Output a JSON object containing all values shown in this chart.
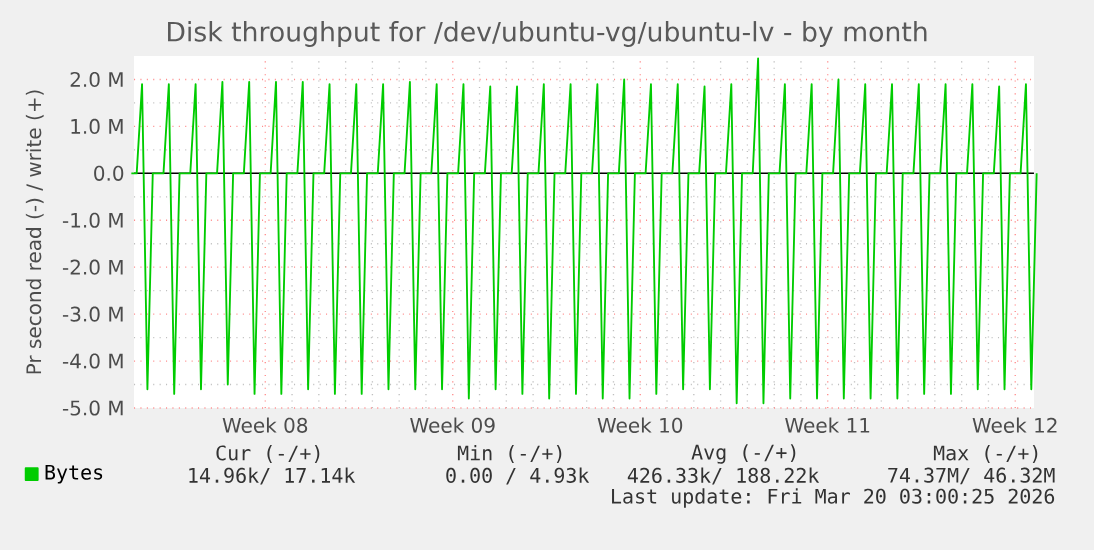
{
  "chart_data": {
    "type": "line",
    "title": "Disk throughput for /dev/ubuntu-vg/ubuntu-lv - by month",
    "ylabel": "Pr second read (-) / write (+)",
    "categories": [
      null,
      null,
      null,
      null,
      null,
      null,
      null,
      null,
      null,
      null,
      null,
      null,
      null,
      null,
      null,
      null,
      null,
      null,
      null,
      null,
      null,
      null,
      null,
      null,
      null,
      "Week 08",
      null,
      null,
      null,
      null,
      null,
      null,
      null,
      null,
      null,
      null,
      null,
      null,
      null,
      null,
      null,
      null,
      null,
      null,
      null,
      null,
      null,
      null,
      null,
      null,
      null,
      null,
      null,
      null,
      null,
      null,
      null,
      null,
      null,
      null,
      "Week 09",
      null,
      null,
      null,
      null,
      null,
      null,
      null,
      null,
      null,
      null,
      null,
      null,
      null,
      null,
      null,
      null,
      null,
      null,
      null,
      null,
      null,
      null,
      null,
      null,
      null,
      null,
      null,
      null,
      null,
      null,
      null,
      null,
      null,
      null,
      "Week 10",
      null,
      null,
      null,
      null,
      null,
      null,
      null,
      null,
      null,
      null,
      null,
      null,
      null,
      null,
      null,
      null,
      null,
      null,
      null,
      null,
      null,
      null,
      null,
      null,
      null,
      null,
      null,
      null,
      null,
      null,
      null,
      null,
      null,
      null,
      "Week 11",
      null,
      null,
      null,
      null,
      null,
      null,
      null,
      null,
      null,
      null,
      null,
      null,
      null,
      null,
      null,
      null,
      null,
      null,
      null,
      null,
      null,
      null,
      null,
      null,
      null,
      null,
      null,
      null,
      null,
      null,
      null,
      null,
      null,
      null,
      "Week 12",
      null,
      null,
      null,
      null
    ],
    "series": [
      {
        "name": "Bytes",
        "color": "#00cc00",
        "values": [
          0,
          0,
          1.9,
          -4.6,
          0,
          0,
          0,
          1.9,
          -4.7,
          0,
          0,
          0,
          1.9,
          -4.6,
          0,
          0,
          0,
          1.95,
          -4.5,
          0,
          0,
          0,
          1.95,
          -4.7,
          0,
          0,
          0,
          1.95,
          -4.7,
          0,
          0,
          0,
          1.95,
          -4.6,
          0,
          0,
          0,
          1.9,
          -4.7,
          0,
          0,
          0,
          1.9,
          -4.7,
          0,
          0,
          0,
          1.9,
          -4.6,
          0,
          0,
          0,
          1.95,
          -4.6,
          0,
          0,
          0,
          1.9,
          -4.6,
          0,
          0,
          0,
          1.9,
          -4.8,
          0,
          0,
          0,
          1.85,
          -4.6,
          0,
          0,
          0,
          1.85,
          -4.7,
          0,
          0,
          0,
          1.9,
          -4.8,
          0,
          0,
          0,
          1.9,
          -4.7,
          0,
          0,
          0,
          1.9,
          -4.8,
          0,
          0,
          0,
          2.0,
          -4.8,
          0,
          0,
          0,
          1.9,
          -4.7,
          0,
          0,
          0,
          1.9,
          -4.6,
          0,
          0,
          0,
          1.85,
          -4.6,
          0,
          0,
          0,
          1.9,
          -4.9,
          0,
          0,
          0,
          2.45,
          -4.9,
          0,
          0,
          0,
          1.9,
          -4.8,
          0,
          0,
          0,
          1.9,
          -4.8,
          0,
          0,
          0,
          2.0,
          -4.8,
          0,
          0,
          0,
          1.9,
          -4.8,
          0,
          0,
          0,
          1.9,
          -4.8,
          0,
          0,
          0,
          1.9,
          -4.7,
          0,
          0,
          0,
          1.9,
          -4.7,
          0,
          0,
          0,
          1.9,
          -4.6,
          0,
          0,
          0,
          1.85,
          -4.6,
          0,
          0,
          0,
          1.9,
          -4.6,
          0
        ]
      }
    ],
    "ylim": [
      -5,
      2.5
    ],
    "yticks": [
      {
        "value": -5,
        "label": "-5.0 M"
      },
      {
        "value": -4,
        "label": "-4.0 M"
      },
      {
        "value": -3,
        "label": "-3.0 M"
      },
      {
        "value": -2,
        "label": "-2.0 M"
      },
      {
        "value": -1,
        "label": "-1.0 M"
      },
      {
        "value": 0,
        "label": "0.0"
      },
      {
        "value": 1,
        "label": "1.0 M"
      },
      {
        "value": 2,
        "label": "2.0 M"
      }
    ],
    "ref_lines": [
      {
        "axis": "y",
        "value": 0,
        "color": "#000000"
      }
    ],
    "grid": true,
    "legend": "bottom left",
    "annotations": [
      "Cur (-/+)",
      "Min (-/+)",
      "Avg (-/+)",
      "Max (-/+)",
      "14.96k/  17.14k",
      "0.00 /    4.93k",
      "426.33k/ 188.22k",
      "74.37M/  46.32M",
      "Last update: Fri Mar 20 03:00:25 2026"
    ]
  }
}
